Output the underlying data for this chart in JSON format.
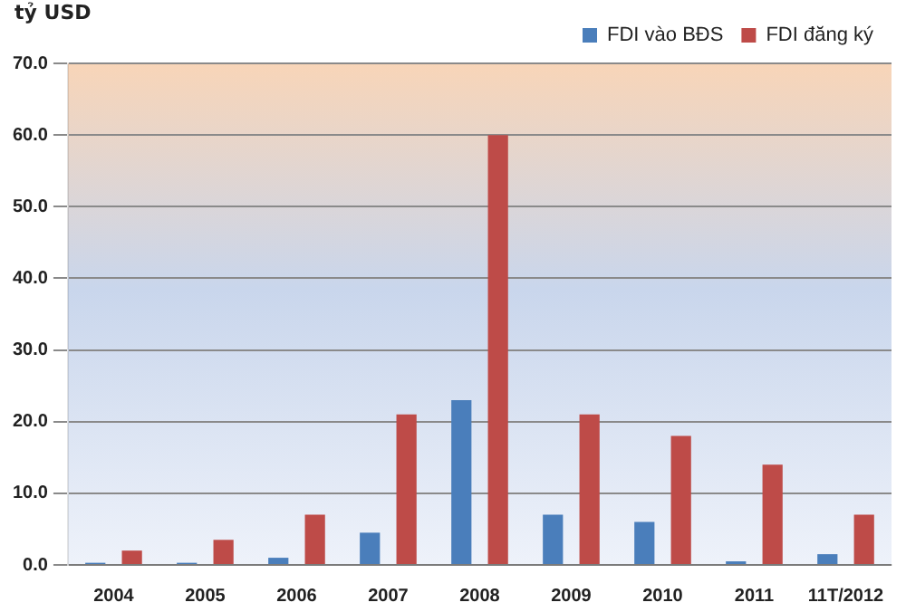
{
  "chart_data": {
    "type": "bar",
    "ylabel": "tỷ USD",
    "categories": [
      "2004",
      "2005",
      "2006",
      "2007",
      "2008",
      "2009",
      "2010",
      "2011",
      "11T/2012"
    ],
    "series": [
      {
        "name": "FDI vào BĐS",
        "color": "#4a7ebb",
        "values": [
          0.3,
          0.3,
          1,
          4.5,
          23,
          7,
          6,
          0.5,
          1.5
        ]
      },
      {
        "name": "FDI đăng ký",
        "color": "#be4b48",
        "values": [
          2,
          3.5,
          7,
          21,
          60,
          21,
          18,
          14,
          7
        ]
      }
    ],
    "ylim": [
      0,
      70
    ],
    "yticks": [
      {
        "value": 0,
        "label": "0.0"
      },
      {
        "value": 10,
        "label": "10.0"
      },
      {
        "value": 20,
        "label": "20.0"
      },
      {
        "value": 30,
        "label": "30.0"
      },
      {
        "value": 40,
        "label": "40.0"
      },
      {
        "value": 50,
        "label": "50.0"
      },
      {
        "value": 60,
        "label": "60.0"
      },
      {
        "value": 70,
        "label": "70.0"
      }
    ],
    "grid": "y",
    "legend": "top right"
  }
}
